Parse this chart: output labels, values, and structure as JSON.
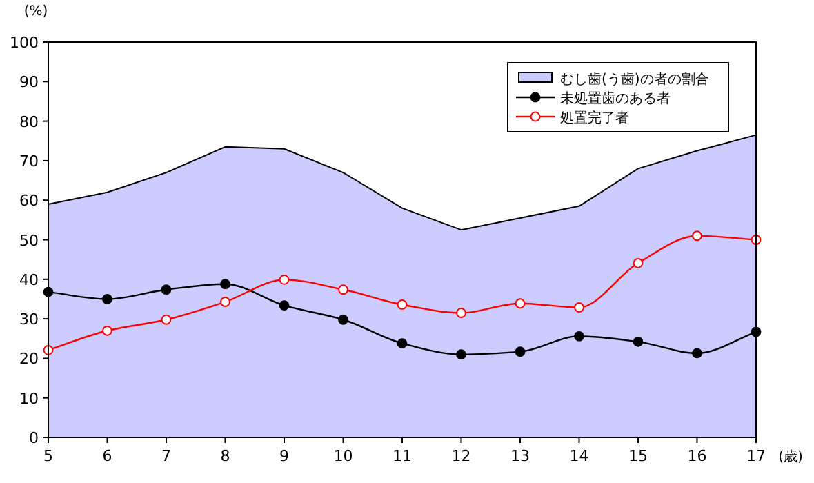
{
  "chart_data": {
    "type": "line",
    "ylabel": "(%)",
    "xlabel": "(歳)",
    "x": [
      5,
      6,
      7,
      8,
      9,
      10,
      11,
      12,
      13,
      14,
      15,
      16,
      17
    ],
    "xlim": [
      5,
      17
    ],
    "xticks": [
      5,
      6,
      7,
      8,
      9,
      10,
      11,
      12,
      13,
      14,
      15,
      16,
      17
    ],
    "ylim": [
      0,
      100
    ],
    "yticks": [
      0,
      10,
      20,
      30,
      40,
      50,
      60,
      70,
      80,
      90,
      100
    ],
    "legend": "top right",
    "series": [
      {
        "name": "むし歯(う歯)の者の割合",
        "type": "area",
        "color": "#ccccff",
        "values": [
          59,
          62,
          67,
          73.5,
          73,
          67,
          58,
          52.5,
          55.5,
          58.5,
          68,
          72.5,
          76.5
        ]
      },
      {
        "name": "未処置歯のある者",
        "marker": "circle",
        "color": "#000000",
        "values": [
          36.8,
          35,
          37.4,
          38.8,
          33.4,
          29.8,
          23.8,
          21,
          21.7,
          25.6,
          24.2,
          21.3,
          26.7
        ]
      },
      {
        "name": "処置完了者",
        "marker": "circle",
        "color": "#ff0000",
        "values": [
          22.1,
          27,
          29.8,
          34.3,
          39.9,
          37.4,
          33.6,
          31.5,
          33.9,
          32.9,
          44.1,
          51,
          50
        ]
      }
    ]
  }
}
